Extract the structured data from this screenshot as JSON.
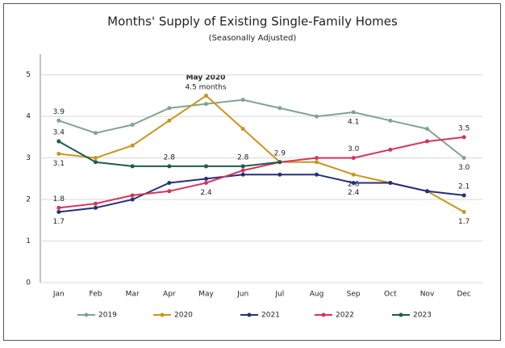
{
  "chart_data": {
    "type": "line",
    "title": "Months' Supply of Existing Single-Family Homes",
    "subtitle": "(Seasonally Adjusted)",
    "annotations": [
      "May 2020",
      "4.5 months"
    ],
    "categories": [
      "Jan",
      "Feb",
      "Mar",
      "Apr",
      "May",
      "Jun",
      "Jul",
      "Aug",
      "Sep",
      "Oct",
      "Nov",
      "Dec"
    ],
    "ylim": [
      0,
      5.5
    ],
    "yticks": [
      0,
      1,
      2,
      3,
      4,
      5
    ],
    "grid": true,
    "series": [
      {
        "name": "2019",
        "color": "#7fa58e",
        "values": [
          3.9,
          3.6,
          3.8,
          4.2,
          4.3,
          4.4,
          4.2,
          4.0,
          4.1,
          3.9,
          3.7,
          3.0
        ],
        "value_labels": [
          "3.9",
          null,
          null,
          null,
          null,
          null,
          null,
          null,
          "4.1",
          null,
          null,
          "3.0"
        ]
      },
      {
        "name": "2020",
        "color": "#c8961e",
        "values": [
          3.1,
          3.0,
          3.3,
          3.9,
          4.5,
          3.7,
          2.9,
          2.9,
          2.6,
          2.4,
          2.2,
          1.7
        ],
        "value_labels": [
          "3.1",
          null,
          null,
          null,
          null,
          null,
          null,
          null,
          "2.6",
          null,
          null,
          "1.7"
        ]
      },
      {
        "name": "2021",
        "color": "#25307a",
        "values": [
          1.7,
          1.8,
          2.0,
          2.4,
          2.5,
          2.6,
          2.6,
          2.6,
          2.4,
          2.4,
          2.2,
          2.1
        ],
        "value_labels": [
          "1.7",
          null,
          null,
          null,
          null,
          null,
          null,
          null,
          "2.4",
          null,
          null,
          "2.1"
        ]
      },
      {
        "name": "2022",
        "color": "#d6345a",
        "values": [
          1.8,
          1.9,
          2.1,
          2.2,
          2.4,
          2.7,
          2.9,
          3.0,
          3.0,
          3.2,
          3.4,
          3.5
        ],
        "value_labels": [
          "1.8",
          null,
          null,
          null,
          "2.4",
          null,
          null,
          null,
          "3.0",
          null,
          null,
          "3.5"
        ]
      },
      {
        "name": "2023",
        "color": "#1f5a50",
        "values": [
          3.4,
          2.9,
          2.8,
          2.8,
          2.8,
          2.8,
          2.9,
          null,
          null,
          null,
          null,
          null
        ],
        "value_labels": [
          "3.4",
          null,
          null,
          "2.8",
          null,
          "2.8",
          "2.9",
          null,
          null,
          null,
          null,
          null
        ]
      }
    ]
  }
}
